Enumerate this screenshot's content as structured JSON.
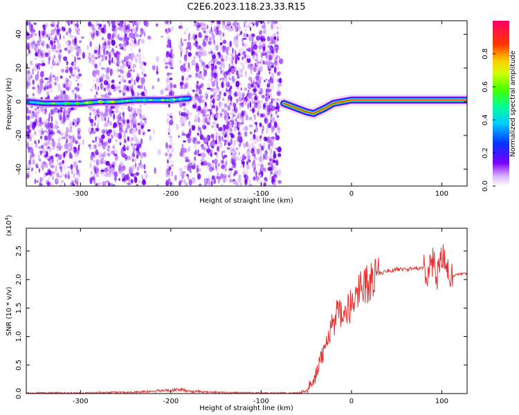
{
  "title": "C2E6.2023.118.23.33.R15",
  "chart_data": [
    {
      "type": "heatmap",
      "xlabel": "Height of straight line (km)",
      "ylabel": "Frequency (Hz)",
      "xlim": [
        -360,
        128
      ],
      "ylim": [
        -50,
        48
      ],
      "xticks": [
        -300,
        -200,
        -100,
        0,
        100
      ],
      "xtick_labels": [
        "-300",
        "-200",
        "-100",
        "0",
        "100"
      ],
      "yticks": [
        -40,
        -20,
        0,
        20,
        40
      ],
      "ytick_labels": [
        "-40",
        "-20",
        "0",
        "20",
        "40"
      ],
      "noise_regions": [
        [
          -360,
          -178
        ],
        [
          -175,
          -78
        ]
      ],
      "noise_gaps": [
        [
          -300,
          -290
        ],
        [
          -228,
          -205
        ],
        [
          -198,
          -190
        ]
      ],
      "ridge": {
        "x": [
          -358,
          -340,
          -320,
          -300,
          -280,
          -260,
          -240,
          -220,
          -200,
          -180,
          -75,
          -60,
          -50,
          -42,
          -30,
          -20,
          -10,
          0,
          20,
          40,
          60,
          80,
          100,
          128
        ],
        "y": [
          0,
          -1,
          -1,
          -1,
          0,
          0,
          1,
          1,
          1,
          2,
          -1,
          -4,
          -6,
          -7,
          -4,
          -1,
          0,
          1,
          1,
          1,
          1,
          1,
          1,
          1
        ]
      },
      "colorbar": {
        "label": "Normalized spectral amplitude",
        "range": [
          0,
          1
        ],
        "ticks": [
          0,
          0.2,
          0.4,
          0.6,
          0.8
        ],
        "tick_labels": [
          "0.0",
          "0.2",
          "0.4",
          "0.6",
          "0.8"
        ]
      },
      "grid": false
    },
    {
      "type": "line",
      "xlabel": "Height of straight line (km)",
      "ylabel": "SNR (10 * v/v)",
      "y_multiplier": "(x10",
      "y_multiplier_exp": "4",
      "y_multiplier_close": ")",
      "xlim": [
        -360,
        128
      ],
      "ylim": [
        0,
        2.9
      ],
      "xticks": [
        -300,
        -200,
        -100,
        0,
        100
      ],
      "xtick_labels": [
        "-300",
        "-200",
        "-100",
        "0",
        "100"
      ],
      "yticks": [
        0,
        0.5,
        1.0,
        1.5,
        2.0,
        2.5
      ],
      "ytick_labels": [
        "0.0",
        "0.5",
        "1.0",
        "1.5",
        "2.0",
        "2.5"
      ],
      "color": "#e8312f",
      "series": [
        {
          "x": [
            -360,
            -300,
            -250,
            -220,
            -200,
            -190,
            -180,
            -150,
            -100,
            -60,
            -50,
            -45,
            -40,
            -35,
            -30,
            -25,
            -20,
            -15,
            -10,
            -5,
            0,
            5,
            10,
            15,
            20,
            25,
            30,
            40,
            50,
            60,
            70,
            80,
            85,
            90,
            95,
            100,
            105,
            110,
            120,
            128
          ],
          "y": [
            0.01,
            0.01,
            0.02,
            0.04,
            0.06,
            0.07,
            0.04,
            0.02,
            0.01,
            0.01,
            0.05,
            0.12,
            0.3,
            0.5,
            0.85,
            1.1,
            1.25,
            1.4,
            1.3,
            1.45,
            1.55,
            1.7,
            1.95,
            1.9,
            1.95,
            2.05,
            2.1,
            2.15,
            2.18,
            2.18,
            2.2,
            2.2,
            2.15,
            2.3,
            2.1,
            2.4,
            2.2,
            2.05,
            2.1,
            2.1
          ]
        }
      ],
      "grid": false
    }
  ]
}
